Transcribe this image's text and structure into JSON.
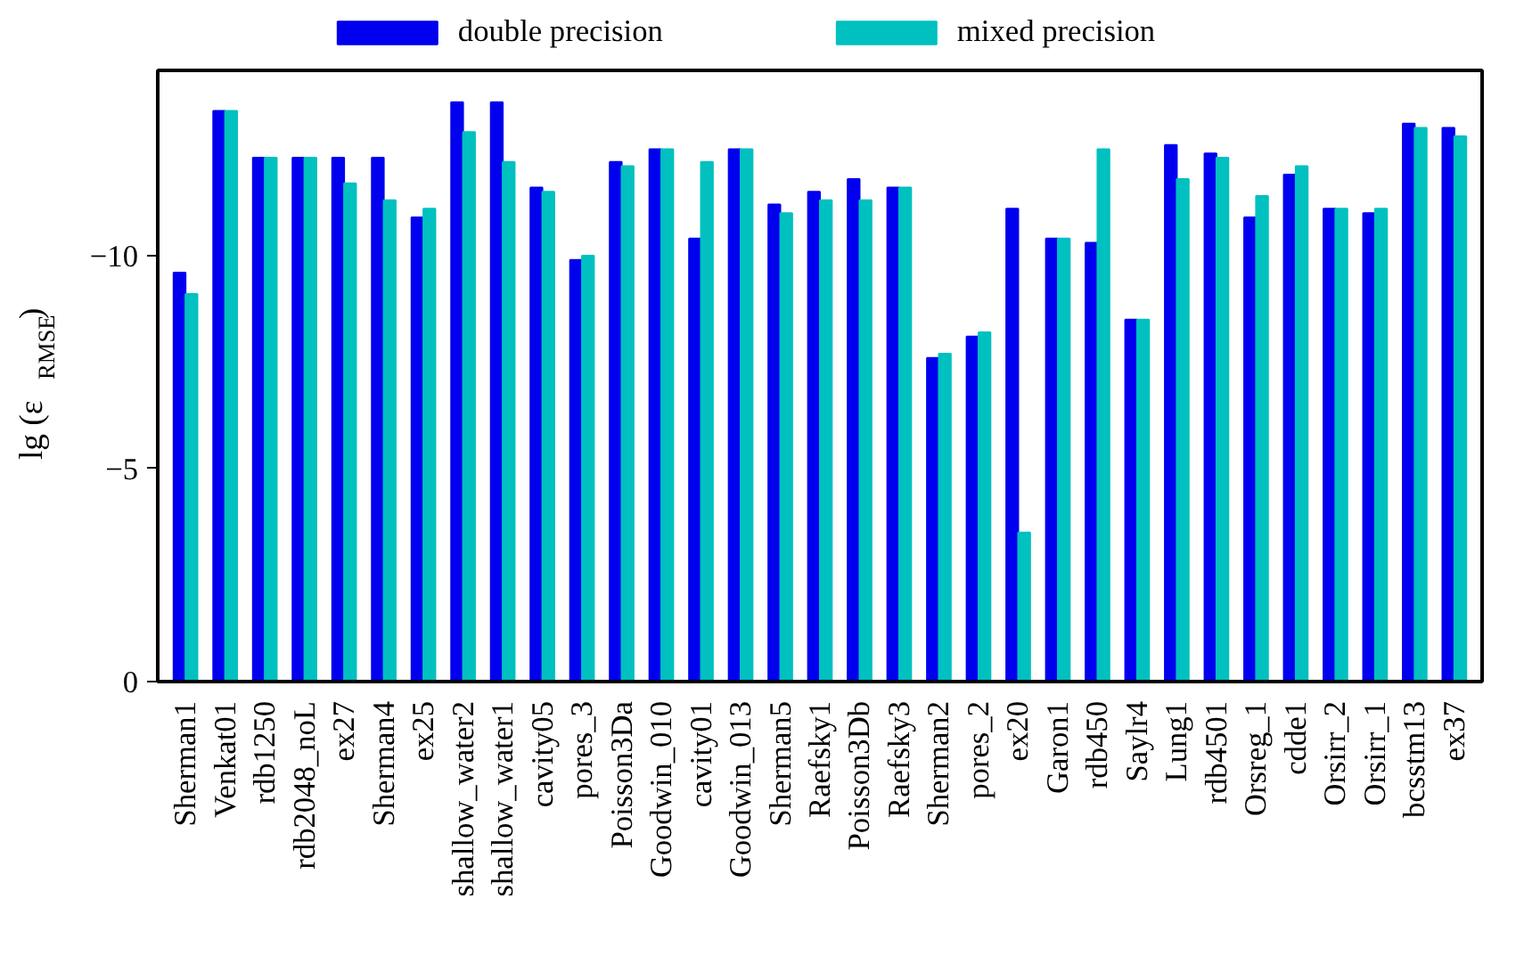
{
  "chart_data": {
    "type": "bar",
    "ylabel": "lg (ε$_{RMSE}$)",
    "categories": [
      "Sherman1",
      "Venkat01",
      "rdb1250",
      "rdb2048_noL",
      "ex27",
      "Sherman4",
      "ex25",
      "shallow_water2",
      "shallow_water1",
      "cavity05",
      "pores_3",
      "Poisson3Da",
      "Goodwin_010",
      "cavity01",
      "Goodwin_013",
      "Sherman5",
      "Raefsky1",
      "Poisson3Db",
      "Raefsky3",
      "Sherman2",
      "pores_2",
      "ex20",
      "Garon1",
      "rdb450",
      "Saylr4",
      "Lung1",
      "rdb4501",
      "Orsreg_1",
      "cdde1",
      "Orsirr_2",
      "Orsirr_1",
      "bcsstm13",
      "ex37"
    ],
    "series": [
      {
        "name": "double precision",
        "color": "#0000ee",
        "values": [
          -9.6,
          -13.4,
          -12.3,
          -12.3,
          -12.3,
          -12.3,
          -10.9,
          -13.6,
          -13.6,
          -11.6,
          -9.9,
          -12.2,
          -12.5,
          -10.4,
          -12.5,
          -11.2,
          -11.5,
          -11.8,
          -11.6,
          -7.6,
          -8.1,
          -11.1,
          -10.4,
          -10.3,
          -8.5,
          -12.6,
          -12.4,
          -10.9,
          -11.9,
          -11.1,
          -11.0,
          -13.1,
          -13.0
        ]
      },
      {
        "name": "mixed precision",
        "color": "#00c0c0",
        "values": [
          -9.1,
          -13.4,
          -12.3,
          -12.3,
          -11.7,
          -11.3,
          -11.1,
          -12.9,
          -12.2,
          -11.5,
          -10.0,
          -12.1,
          -12.5,
          -12.2,
          -12.5,
          -11.0,
          -11.3,
          -11.3,
          -11.6,
          -7.7,
          -8.2,
          -3.5,
          -10.4,
          -12.5,
          -8.5,
          -11.8,
          -12.3,
          -11.4,
          -12.1,
          -11.1,
          -11.1,
          -13.0,
          -12.8
        ]
      }
    ],
    "ylim": [
      0,
      -14.35
    ],
    "yticks": [
      0,
      -5,
      -10
    ],
    "grid": false,
    "legend": "top"
  }
}
